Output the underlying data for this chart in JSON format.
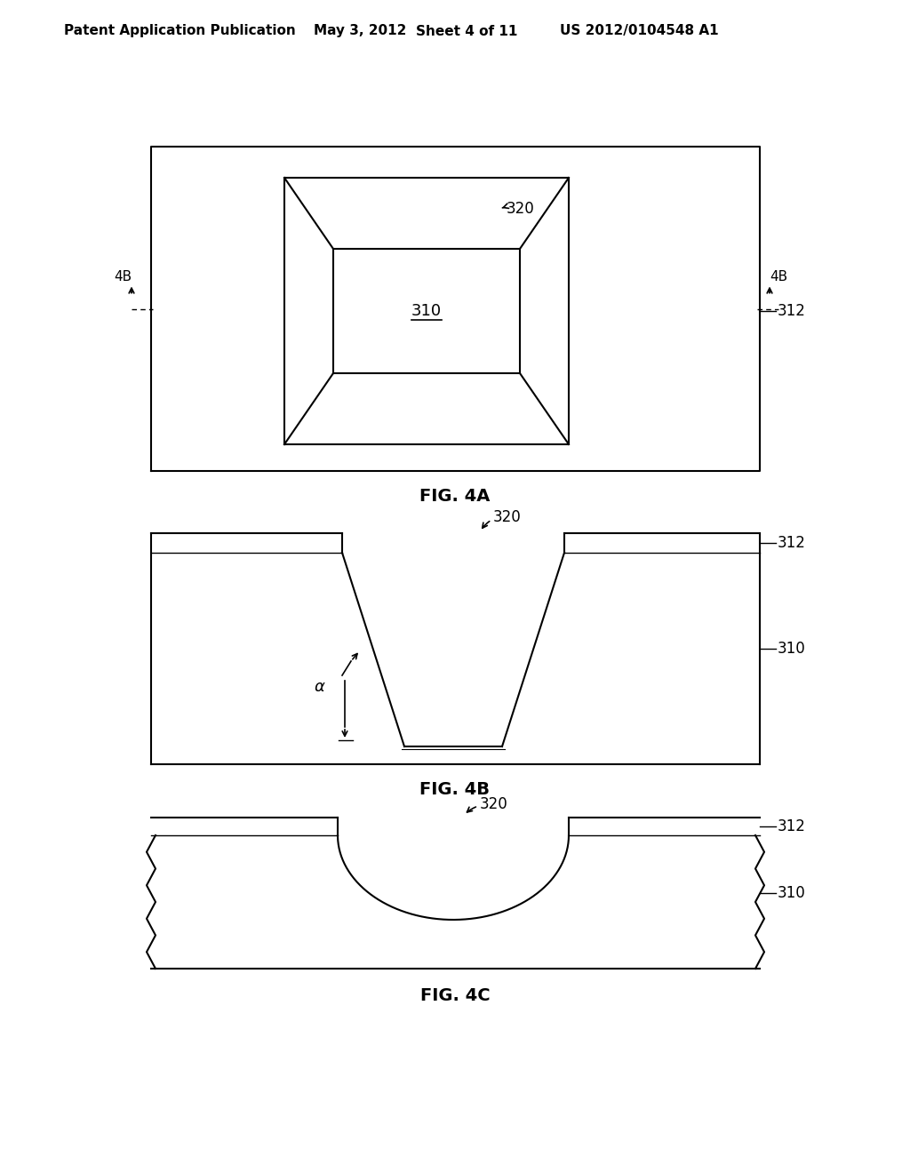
{
  "bg_color": "#ffffff",
  "header_text": "Patent Application Publication",
  "header_date": "May 3, 2012",
  "header_sheet": "Sheet 4 of 11",
  "header_patent": "US 2012/0104548 A1",
  "fig4a_label": "FIG. 4A",
  "fig4b_label": "FIG. 4B",
  "fig4c_label": "FIG. 4C",
  "label_310": "310",
  "label_312": "312",
  "label_320": "320",
  "label_4B": "4B",
  "label_alpha": "α"
}
